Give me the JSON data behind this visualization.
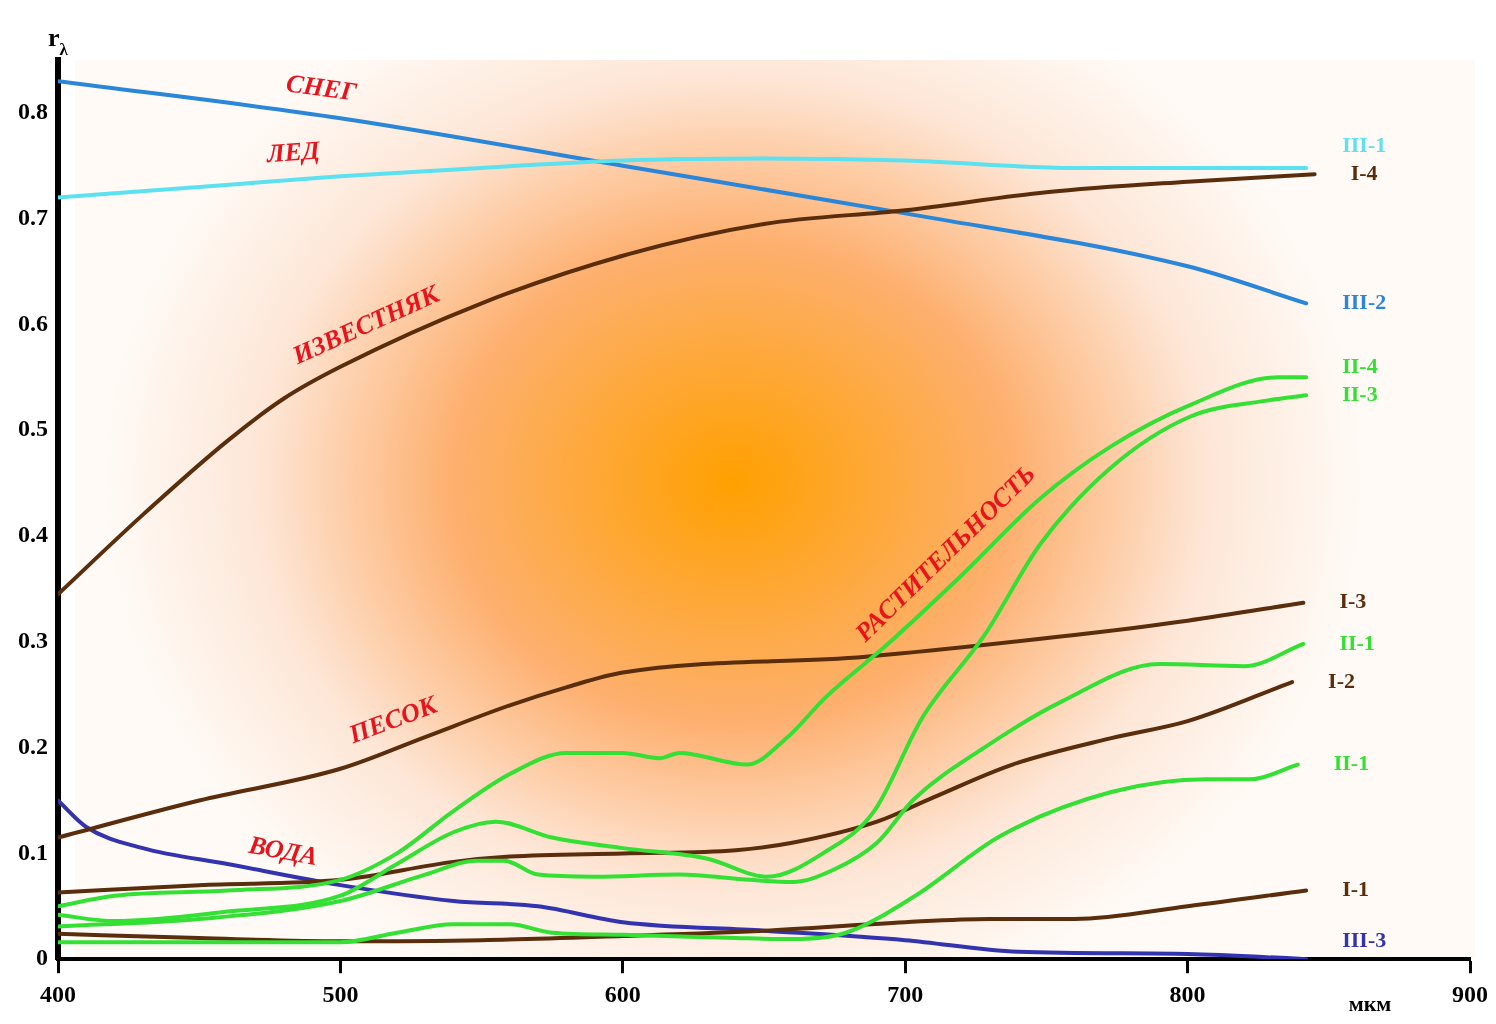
{
  "chart_data": {
    "type": "line",
    "xlabel": "мкм",
    "ylabel": "r$_{λ}$",
    "xlim": [
      400,
      900
    ],
    "xticks": [
      400,
      500,
      600,
      700,
      800,
      900
    ],
    "ylim": [
      0,
      0.85
    ],
    "yticks": [
      0,
      0.1,
      0.2,
      0.3,
      0.4,
      0.5,
      0.6,
      0.7,
      0.8
    ],
    "grid": false,
    "legend": false,
    "marker": "none",
    "line_style": "solid",
    "series": [
      {
        "name": "III-1",
        "color": "#5ce1f0",
        "x": [
          400,
          450,
          500,
          550,
          600,
          650,
          700,
          760,
          842
        ],
        "values": [
          0.72,
          0.73,
          0.74,
          0.748,
          0.755,
          0.757,
          0.755,
          0.748,
          0.748
        ]
      },
      {
        "name": "I-4",
        "color": "#5a2d0c",
        "x": [
          400,
          430,
          460,
          480,
          500,
          550,
          600,
          650,
          700,
          750,
          800,
          845
        ],
        "values": [
          0.345,
          0.42,
          0.49,
          0.53,
          0.56,
          0.62,
          0.665,
          0.695,
          0.708,
          0.725,
          0.735,
          0.742
        ]
      },
      {
        "name": "III-2",
        "color": "#2a86d8",
        "x": [
          400,
          500,
          600,
          700,
          800,
          842
        ],
        "values": [
          0.83,
          0.795,
          0.75,
          0.705,
          0.655,
          0.62
        ]
      },
      {
        "name": "II-4",
        "color": "#33e033",
        "x": [
          400,
          420,
          460,
          500,
          520,
          540,
          560,
          580,
          600,
          613,
          620,
          644,
          658,
          672,
          693,
          720,
          748,
          773,
          801,
          832,
          842
        ],
        "values": [
          0.05,
          0.06,
          0.065,
          0.075,
          0.1,
          0.14,
          0.175,
          0.195,
          0.195,
          0.19,
          0.195,
          0.184,
          0.209,
          0.248,
          0.296,
          0.363,
          0.436,
          0.485,
          0.524,
          0.55,
          0.55
        ]
      },
      {
        "name": "II-3",
        "color": "#33e033",
        "x": [
          400,
          420,
          460,
          500,
          520,
          540,
          555,
          575,
          600,
          630,
          651,
          672,
          689,
          706,
          728,
          748,
          773,
          801,
          828,
          842
        ],
        "values": [
          0.042,
          0.036,
          0.045,
          0.06,
          0.09,
          0.12,
          0.13,
          0.115,
          0.105,
          0.095,
          0.078,
          0.102,
          0.14,
          0.228,
          0.306,
          0.393,
          0.465,
          0.513,
          0.528,
          0.533
        ]
      },
      {
        "name": "I-3",
        "color": "#5a2d0c",
        "x": [
          400,
          450,
          500,
          530,
          560,
          580,
          600,
          686,
          755,
          800,
          841
        ],
        "values": [
          0.115,
          0.15,
          0.18,
          0.21,
          0.24,
          0.257,
          0.271,
          0.286,
          0.305,
          0.32,
          0.337
        ]
      },
      {
        "name": "II-1",
        "color": "#33e033",
        "x": [
          400,
          450,
          500,
          530,
          548,
          558,
          570,
          590,
          620,
          645,
          660,
          675,
          690,
          703,
          728,
          755,
          790,
          820,
          841
        ],
        "values": [
          0.031,
          0.038,
          0.055,
          0.08,
          0.093,
          0.093,
          0.08,
          0.078,
          0.08,
          0.075,
          0.073,
          0.085,
          0.11,
          0.151,
          0.2,
          0.243,
          0.279,
          0.277,
          0.298
        ]
      },
      {
        "name": "I-2",
        "color": "#5a2d0c",
        "x": [
          400,
          450,
          500,
          540,
          560,
          600,
          640,
          660,
          690,
          710,
          738,
          773,
          800,
          837
        ],
        "values": [
          0.063,
          0.07,
          0.075,
          0.092,
          0.097,
          0.1,
          0.103,
          0.11,
          0.13,
          0.153,
          0.184,
          0.209,
          0.225,
          0.262
        ]
      },
      {
        "name": "II-1",
        "color": "#33e033",
        "x": [
          400,
          500,
          520,
          540,
          560,
          575,
          600,
          640,
          660,
          679,
          703,
          734,
          773,
          807,
          822,
          839
        ],
        "values": [
          0.016,
          0.016,
          0.025,
          0.033,
          0.033,
          0.025,
          0.023,
          0.02,
          0.019,
          0.025,
          0.059,
          0.117,
          0.158,
          0.17,
          0.17,
          0.184
        ]
      },
      {
        "name": "I-1",
        "color": "#5a2d0c",
        "x": [
          400,
          450,
          500,
          550,
          600,
          650,
          700,
          730,
          760,
          800,
          842
        ],
        "values": [
          0.024,
          0.02,
          0.017,
          0.018,
          0.022,
          0.027,
          0.035,
          0.038,
          0.038,
          0.05,
          0.065
        ]
      },
      {
        "name": "III-3",
        "color": "#3333b0",
        "x": [
          400,
          410,
          430,
          460,
          500,
          540,
          570,
          600,
          650,
          700,
          740,
          800,
          842
        ],
        "values": [
          0.15,
          0.125,
          0.105,
          0.09,
          0.07,
          0.055,
          0.05,
          0.035,
          0.027,
          0.018,
          0.007,
          0.005,
          0
        ]
      }
    ],
    "annotations": [
      {
        "text": "СНЕГ",
        "x": 492,
        "y": 0.798
      },
      {
        "text": "ЛЕД",
        "x": 484,
        "y": 0.737
      },
      {
        "text": "ИЗВЕСТНЯК",
        "x": 513,
        "y": 0.576
      },
      {
        "text": "РАСТИТЕЛЬНОСТЬ",
        "x": 721,
        "y": 0.365
      },
      {
        "text": "ПЕСОК",
        "x": 522,
        "y": 0.202
      },
      {
        "text": "ВОДА",
        "x": 478,
        "y": 0.077
      }
    ]
  }
}
